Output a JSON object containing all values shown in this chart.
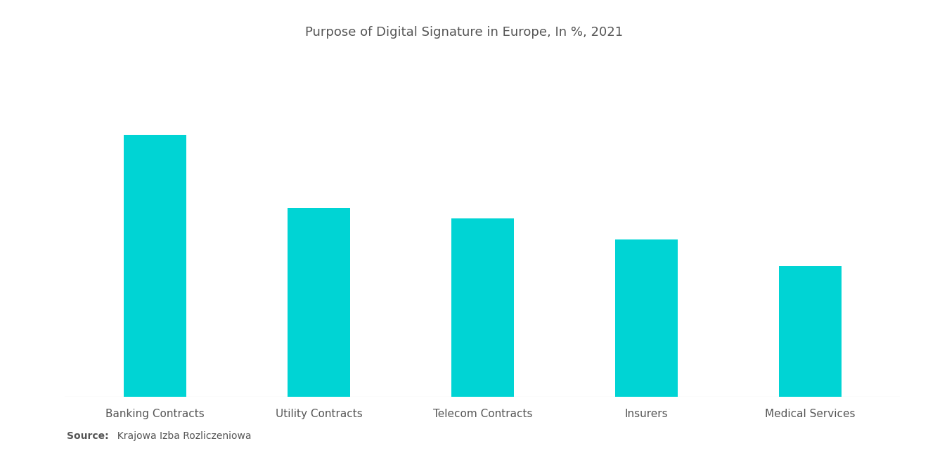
{
  "title": "Purpose of Digital Signature in Europe, In %, 2021",
  "categories": [
    "Banking Contracts",
    "Utility Contracts",
    "Telecom Contracts",
    "Insurers",
    "Medical Services"
  ],
  "values": [
    100,
    72,
    68,
    60,
    50
  ],
  "bar_color": "#00D4D4",
  "background_color": "#ffffff",
  "title_color": "#555555",
  "label_color": "#555555",
  "title_fontsize": 13,
  "label_fontsize": 11,
  "source_label": "Source:",
  "source_text": "  Krajowa Izba Rozliczeniowa",
  "source_fontsize": 10,
  "ylim": [
    0,
    130
  ],
  "bar_width": 0.38
}
